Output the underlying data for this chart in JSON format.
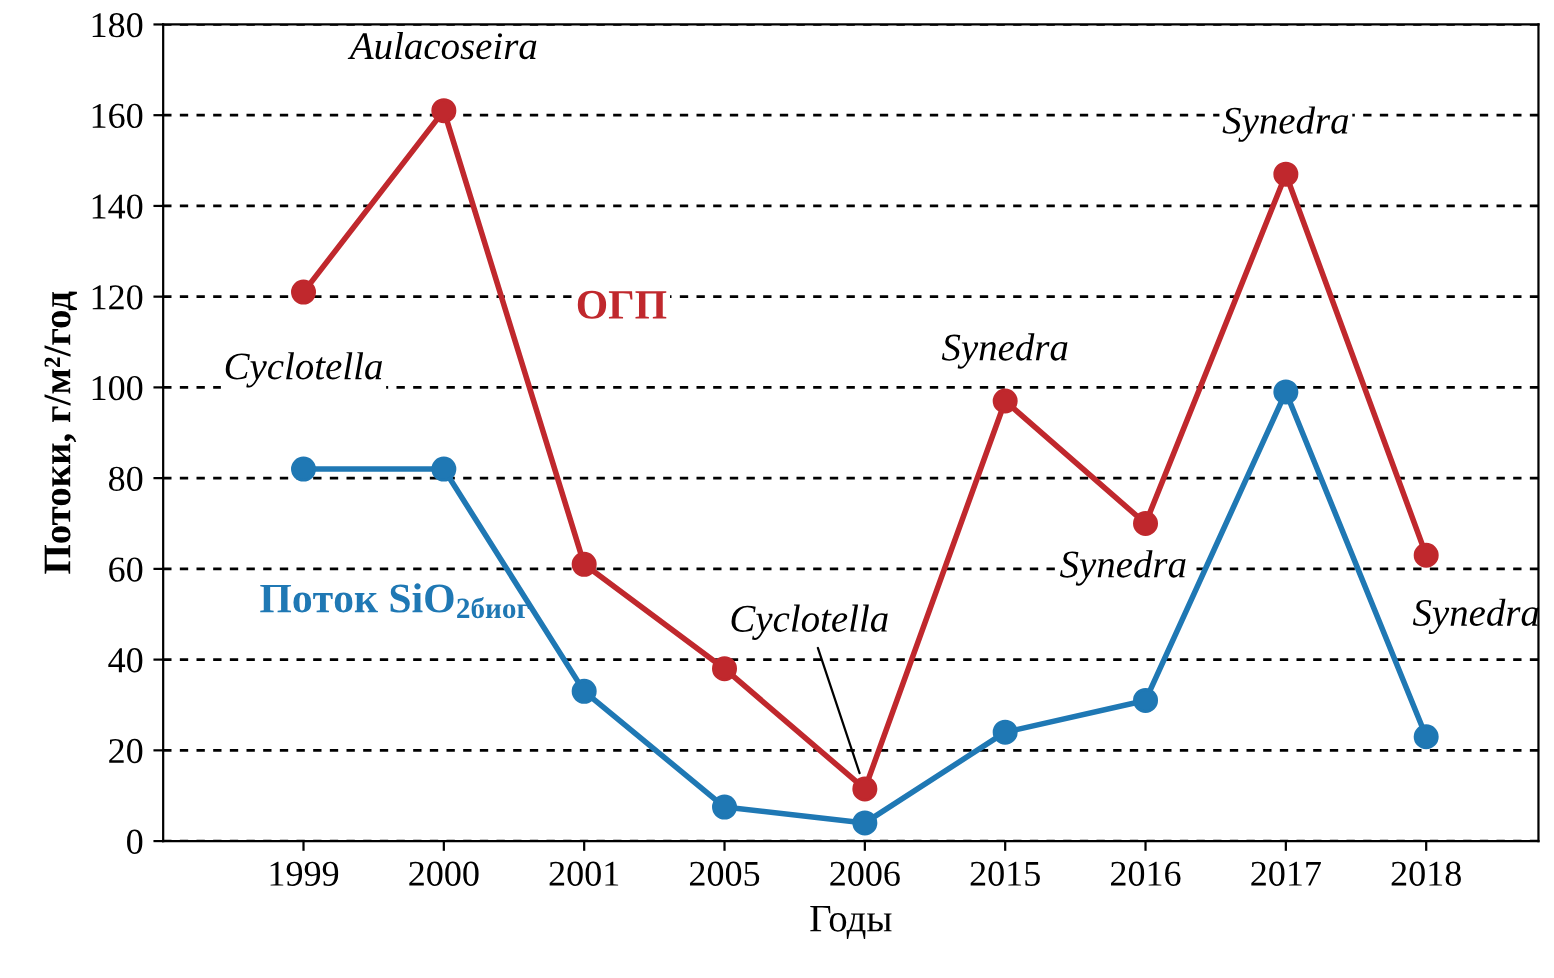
{
  "chart_data": {
    "type": "line",
    "xlabel": "Годы",
    "ylabel": "Потоки, г/м²/год",
    "categories": [
      "1999",
      "2000",
      "2001",
      "2005",
      "2006",
      "2015",
      "2016",
      "2017",
      "2018"
    ],
    "series": [
      {
        "name": "ОГП",
        "color": "#c0282d",
        "values": [
          121,
          161,
          61,
          38,
          11.5,
          97,
          70,
          147,
          63
        ]
      },
      {
        "name": "Поток SiO$_{2биог}$",
        "color": "#1f78b4",
        "values": [
          82,
          82,
          33,
          7.5,
          4,
          24,
          31,
          99,
          23
        ]
      }
    ],
    "annotations": [
      {
        "text": "Cyclotella",
        "x": "1999",
        "y": 121
      },
      {
        "text": "Aulacoseira",
        "x": "2000",
        "y": 161
      },
      {
        "text": "Cyclotella",
        "x": "2006",
        "y": 11.5
      },
      {
        "text": "Synedra",
        "x": "2015",
        "y": 97
      },
      {
        "text": "Synedra",
        "x": "2016",
        "y": 70
      },
      {
        "text": "Synedra",
        "x": "2017",
        "y": 147
      },
      {
        "text": "Synedra",
        "x": "2018",
        "y": 63
      }
    ],
    "ylim": [
      0,
      180
    ],
    "yticks": [
      0,
      20,
      40,
      60,
      80,
      100,
      120,
      140,
      160,
      180
    ],
    "grid": "y",
    "marker": "circle",
    "line_style": "solid",
    "legend": false
  }
}
